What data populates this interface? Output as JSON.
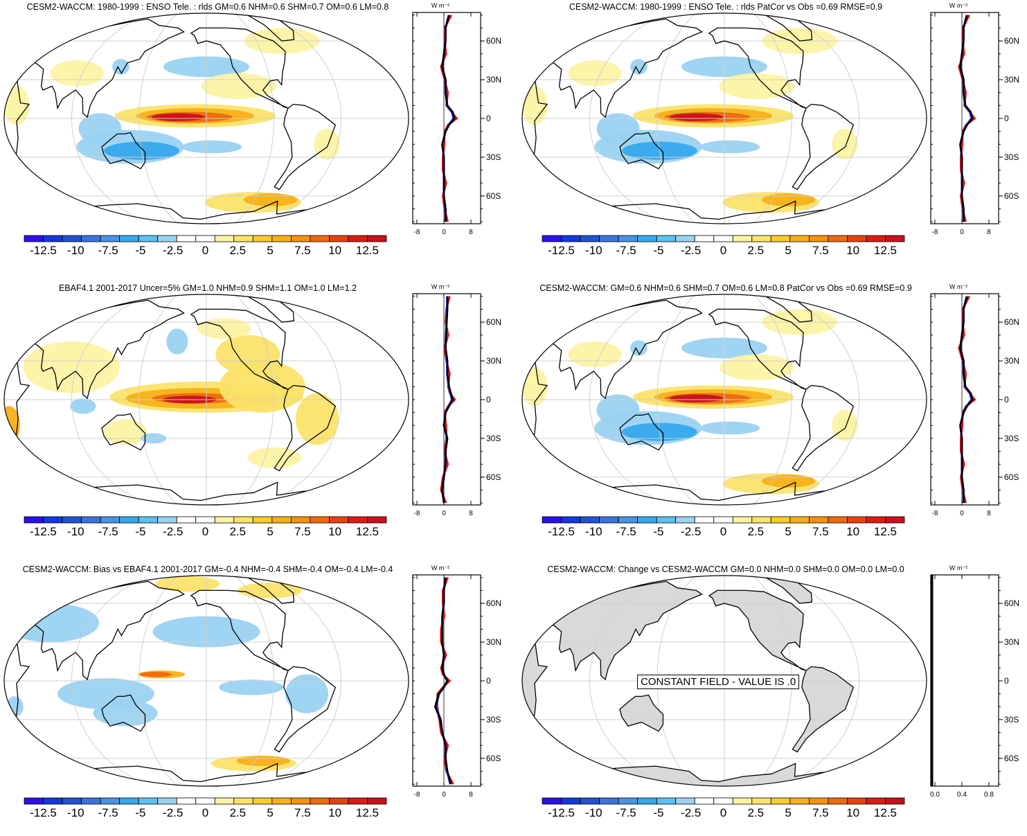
{
  "colorbar": {
    "colors": [
      "#2c11e6",
      "#1438d9",
      "#2253cf",
      "#3a74db",
      "#4a93e6",
      "#36a9ec",
      "#5ec0f0",
      "#9ad2f2",
      "#ffffff",
      "#ffffff",
      "#fcf3a4",
      "#fbe36a",
      "#f9cc2e",
      "#f8b018",
      "#f4920d",
      "#ee6a0d",
      "#e7420e",
      "#dc1c13",
      "#c8111b"
    ],
    "labels": [
      "-12.5",
      "-10",
      "-7.5",
      "-5",
      "-2.5",
      "0",
      "2.5",
      "5",
      "7.5",
      "10",
      "12.5"
    ]
  },
  "panels": [
    {
      "title": "CESM2-WACCM: 1980-1999 : ENSO Tele. : rlds GM=0.6 NHM=0.6 SHM=0.7 OM=0.6 LM=0.8",
      "pattern": "model",
      "zonal_axis_labels": [
        "-8",
        "0",
        "8"
      ],
      "lat_labels": [
        "60N",
        "30N",
        "0",
        "30S",
        "60S"
      ],
      "units": "W m⁻²"
    },
    {
      "title": "CESM2-WACCM: 1980-1999 : ENSO Tele. : rlds PatCor vs Obs =0.69 RMSE=0.9",
      "pattern": "model",
      "zonal_axis_labels": [
        "-8",
        "0",
        "8"
      ],
      "lat_labels": [
        "60N",
        "30N",
        "0",
        "30S",
        "60S"
      ],
      "units": "W m⁻²"
    },
    {
      "title": "EBAF4.1 2001-2017 Uncer=5% GM=1.0 NHM=0.9 SHM=1.1 OM=1.0 LM=1.2",
      "pattern": "obs",
      "zonal_axis_labels": [
        "-8",
        "0",
        "8"
      ],
      "lat_labels": [
        "60N",
        "30N",
        "0",
        "30S",
        "60S"
      ],
      "units": "W m⁻²"
    },
    {
      "title": "CESM2-WACCM: GM=0.6 NHM=0.6 SHM=0.7 OM=0.6 LM=0.8 PatCor vs Obs =0.69 RMSE=0.9",
      "pattern": "model",
      "zonal_axis_labels": [
        "-8",
        "0",
        "8"
      ],
      "lat_labels": [
        "60N",
        "30N",
        "0",
        "30S",
        "60S"
      ],
      "units": "W m⁻²"
    },
    {
      "title": "CESM2-WACCM: Bias vs EBAF4.1 2001-2017 GM=-0.4 NHM=-0.4 SHM=-0.4 OM=-0.4 LM=-0.4",
      "pattern": "bias",
      "zonal_axis_labels": [
        "-8",
        "0",
        "8"
      ],
      "lat_labels": [
        "60N",
        "30N",
        "0",
        "30S",
        "60S"
      ],
      "units": "W m⁻²"
    },
    {
      "title": "CESM2-WACCM: Change vs CESM2-WACCM GM=0.0 NHM=0.0 SHM=0.0 OM=0.0 LM=0.0",
      "pattern": "constant",
      "constant_label": "CONSTANT FIELD - VALUE IS .0",
      "zonal_axis_labels": [
        "0.0",
        "0.4",
        "0.8"
      ],
      "lat_labels": [
        "60N",
        "30N",
        "0",
        "30S",
        "60S"
      ],
      "units": "W m⁻²"
    }
  ],
  "chart_data": {
    "type": "heatmap",
    "projection": "Robinson, Pacific-centred",
    "variable": "rlds ENSO teleconnection",
    "colorbar_range": [
      -13.75,
      13.75
    ],
    "zonal_mean_profiles": {
      "lat": [
        80,
        70,
        60,
        50,
        40,
        30,
        20,
        10,
        5,
        0,
        -5,
        -10,
        -20,
        -30,
        -40,
        -50,
        -60,
        -70,
        -80
      ],
      "model": [
        1.5,
        0.5,
        0.5,
        0.0,
        -0.5,
        0.5,
        0.5,
        1.0,
        2.5,
        3.0,
        1.5,
        0.5,
        -0.5,
        0.0,
        0.0,
        0.0,
        0.0,
        0.5,
        0.5
      ],
      "obs": [
        1.0,
        1.0,
        0.8,
        0.6,
        0.5,
        1.0,
        1.0,
        1.5,
        2.0,
        2.5,
        1.5,
        0.5,
        0.0,
        1.0,
        0.5,
        0.5,
        0.0,
        -0.5,
        0.0
      ],
      "bias": [
        0.5,
        0.0,
        0.0,
        -0.5,
        -0.5,
        -0.5,
        0.0,
        -0.5,
        0.0,
        1.0,
        0.0,
        -1.5,
        -2.5,
        -1.0,
        -0.5,
        0.5,
        0.5,
        1.0,
        2.0
      ],
      "series_colors": {
        "land": "#e01010",
        "ocean": "#1a2bd8",
        "all": "#000000"
      }
    }
  }
}
